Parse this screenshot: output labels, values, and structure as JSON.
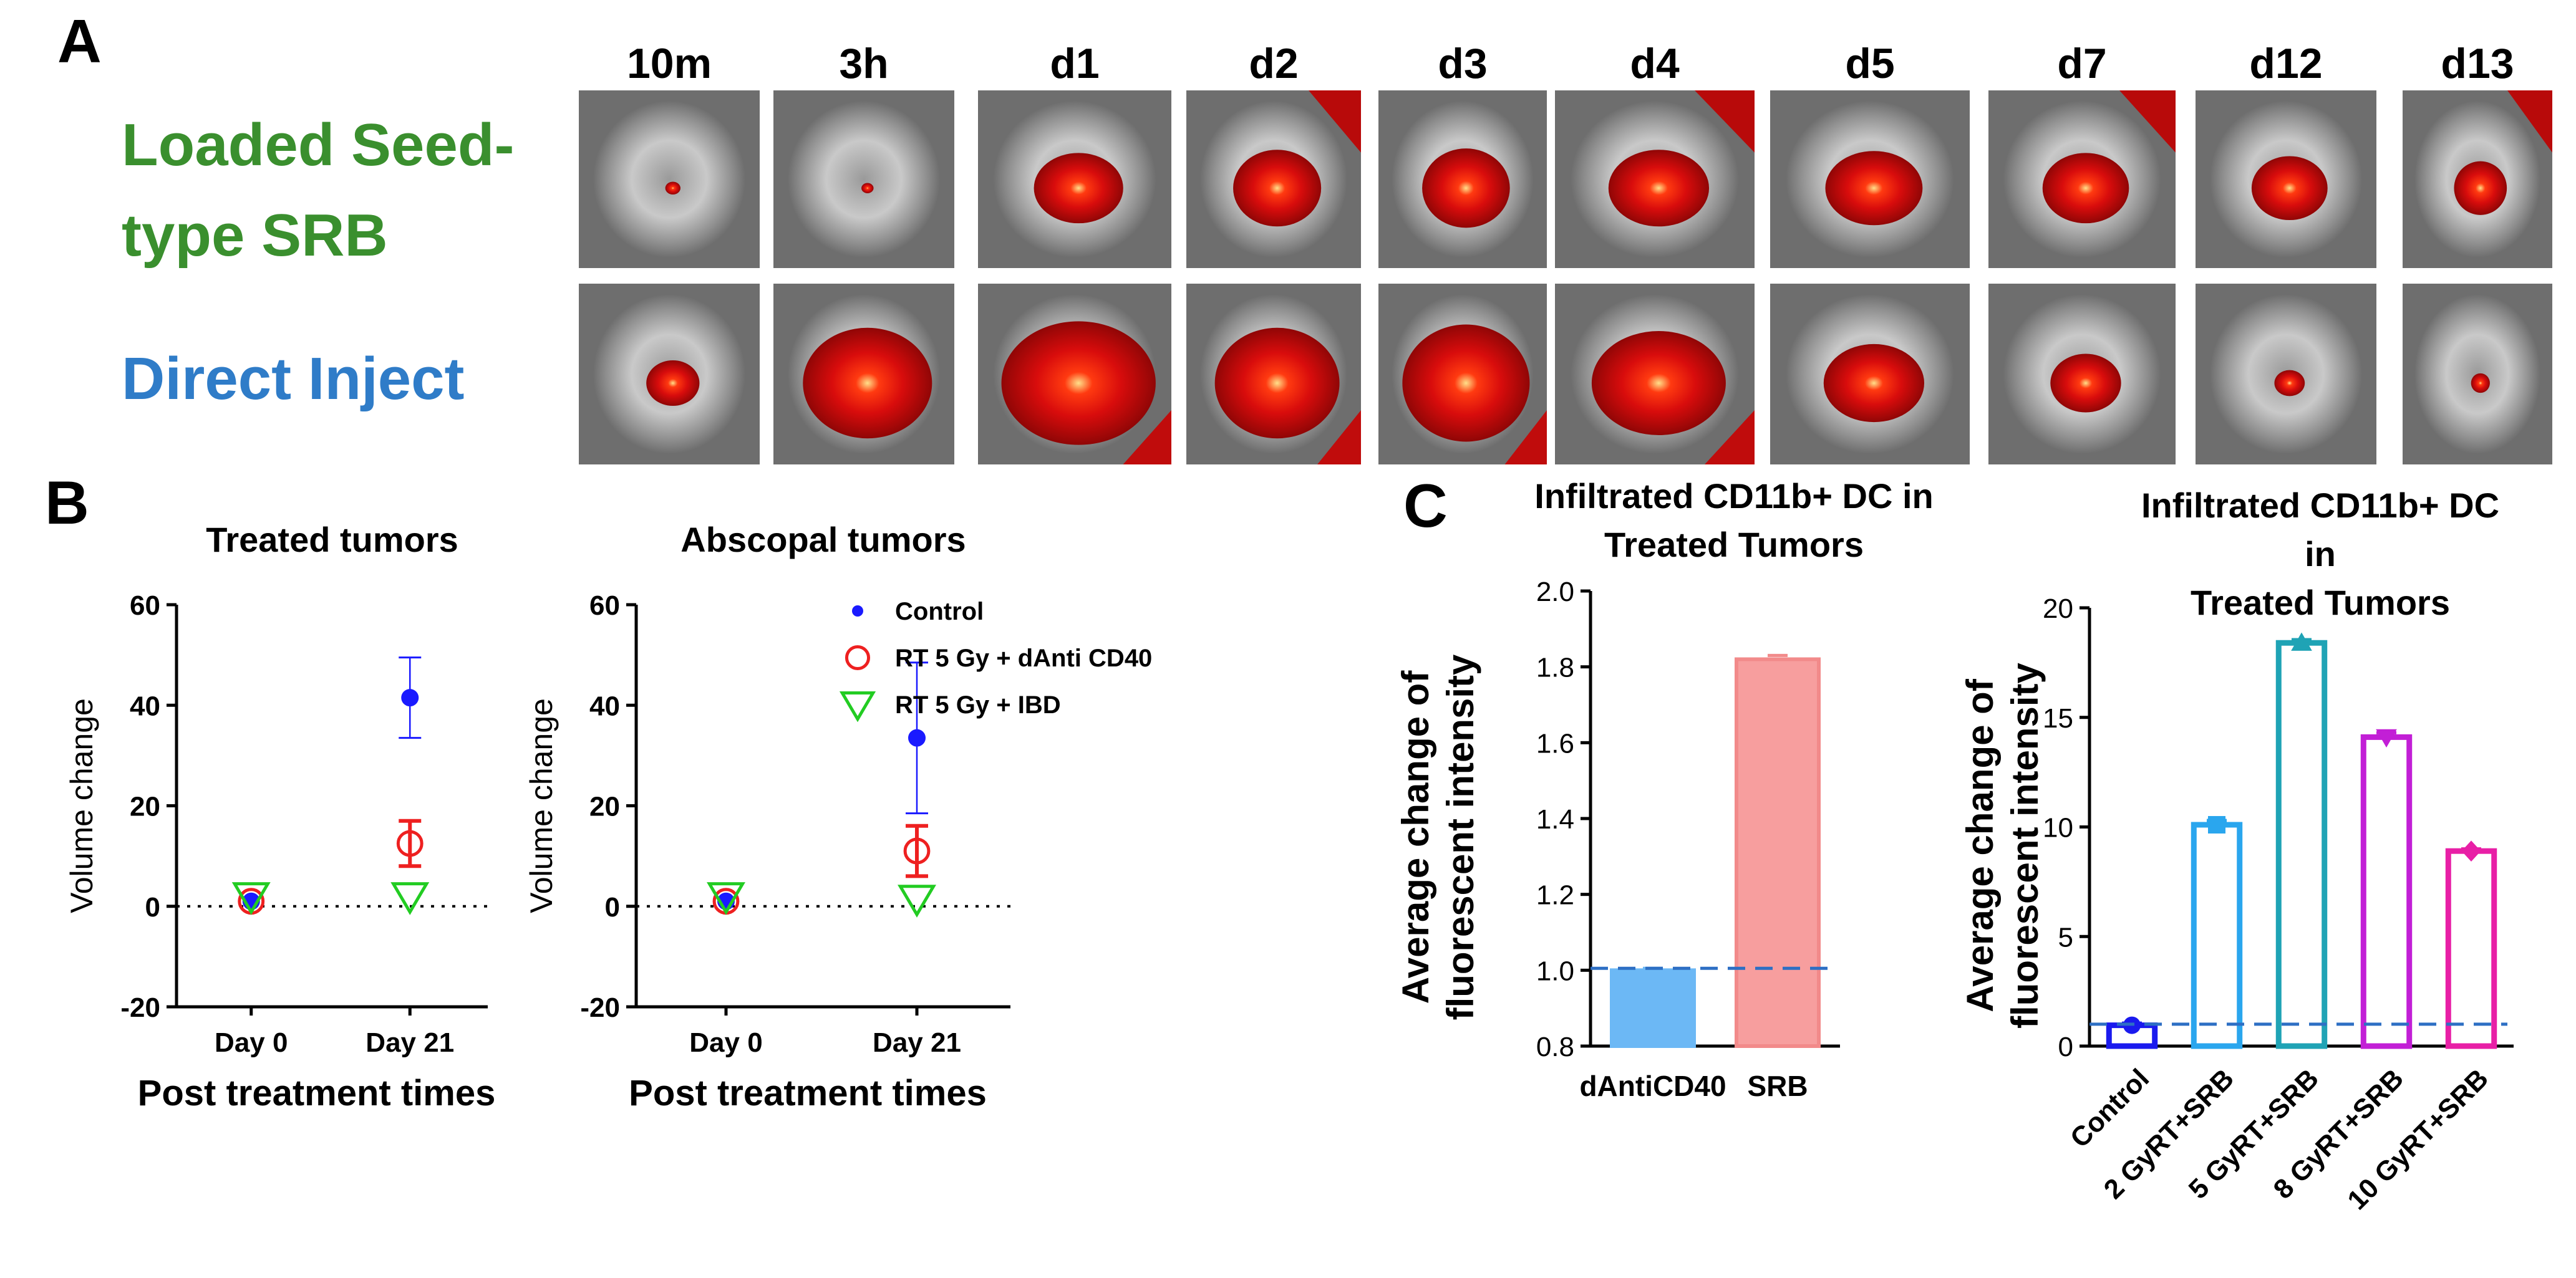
{
  "panel_letters": {
    "a": "A",
    "b": "B",
    "c": "C"
  },
  "panel_a": {
    "timepoints": [
      "10m",
      "3h",
      "d1",
      "d2",
      "d3",
      "d4",
      "d5",
      "d7",
      "d12",
      "d13"
    ],
    "rows": [
      {
        "label_lines": [
          "Loaded Seed-",
          "type SRB"
        ],
        "color": "#3a8f2e",
        "signal": [
          0.1,
          0.08,
          0.55,
          0.6,
          0.62,
          0.6,
          0.58,
          0.55,
          0.5,
          0.42
        ]
      },
      {
        "label_lines": [
          "Direct Inject"
        ],
        "color": "#2f7cc8",
        "signal": [
          0.35,
          0.85,
          0.95,
          0.85,
          0.9,
          0.8,
          0.6,
          0.45,
          0.2,
          0.15
        ]
      }
    ]
  },
  "chart_data": [
    {
      "id": "treated",
      "type": "scatter",
      "title": "Treated tumors",
      "xlabel": "Post treatment times",
      "ylabel": "Volume change",
      "categories": [
        "Day 0",
        "Day 21"
      ],
      "ylim": [
        -20,
        60
      ],
      "yticks": [
        -20,
        0,
        20,
        40,
        60
      ],
      "baseline": 0,
      "series": [
        {
          "name": "Control",
          "marker": "dot",
          "color": "#1a1aff",
          "values": [
            1,
            41.5
          ],
          "err": [
            0.5,
            8
          ]
        },
        {
          "name": "RT 5 Gy + dAnti CD40",
          "marker": "circle",
          "color": "#ee2020",
          "values": [
            1,
            12.5
          ],
          "err": [
            0.5,
            4.5
          ]
        },
        {
          "name": "RT 5 Gy + IBD",
          "marker": "triangle",
          "color": "#22cc22",
          "values": [
            2,
            2
          ],
          "err": [
            0,
            0
          ]
        }
      ]
    },
    {
      "id": "abscopal",
      "type": "scatter",
      "title": "Abscopal tumors",
      "xlabel": "Post treatment times",
      "ylabel": "Volume change",
      "categories": [
        "Day 0",
        "Day 21"
      ],
      "ylim": [
        -20,
        60
      ],
      "yticks": [
        -20,
        0,
        20,
        40,
        60
      ],
      "baseline": 0,
      "legend": "top-right",
      "series": [
        {
          "name": "Control",
          "marker": "dot",
          "color": "#1a1aff",
          "values": [
            1,
            33.5
          ],
          "err": [
            0.5,
            15
          ]
        },
        {
          "name": "RT 5 Gy + dAnti CD40",
          "marker": "circle",
          "color": "#ee2020",
          "values": [
            1,
            11
          ],
          "err": [
            0.5,
            5
          ]
        },
        {
          "name": "RT 5 Gy + IBD",
          "marker": "triangle",
          "color": "#22cc22",
          "values": [
            2,
            1.5
          ],
          "err": [
            0,
            0
          ]
        }
      ]
    },
    {
      "id": "cd40",
      "type": "bar",
      "title_lines": [
        "Infiltrated CD11b+ DC in",
        "Treated Tumors"
      ],
      "ylabel_lines": [
        "Average change of",
        "fluorescent intensity"
      ],
      "categories": [
        "dAntiCD40",
        "SRB"
      ],
      "values": [
        1.0,
        1.82
      ],
      "err": [
        0.005,
        0.01
      ],
      "colors": [
        "#6cb8f5",
        "#f79e9e"
      ],
      "edge_colors": [
        "#6cb8f5",
        "#f28a8a"
      ],
      "ylim": [
        0.8,
        2.0
      ],
      "yticks": [
        0.8,
        1.0,
        1.2,
        1.4,
        1.6,
        1.8,
        2.0
      ],
      "yticks_fmt": 1,
      "baseline": 1.005,
      "filled": true
    },
    {
      "id": "dose",
      "type": "bar",
      "title_lines": [
        "Infiltrated CD11b+ DC",
        "in",
        "Treated Tumors"
      ],
      "ylabel_lines": [
        "Average change of",
        "fluorescent intensity"
      ],
      "categories": [
        "Control",
        "2 GyRT+SRB",
        "5 GyRT+SRB",
        "8 GyRT+SRB",
        "10 GyRT+SRB"
      ],
      "values": [
        0.95,
        10.1,
        18.4,
        14.1,
        8.9
      ],
      "err": [
        0.1,
        0.2,
        0.15,
        0.2,
        0.1
      ],
      "colors": [
        "#1a1aee",
        "#2aa6ee",
        "#1fa3b5",
        "#c21fd6",
        "#e81fa6"
      ],
      "edge_colors": [
        "#1a1aee",
        "#2aa6ee",
        "#1fa3b5",
        "#c21fd6",
        "#e81fa6"
      ],
      "markers": [
        "dot",
        "square",
        "triangle",
        "invtriangle",
        "diamond"
      ],
      "ylim": [
        0,
        20
      ],
      "yticks": [
        0,
        5,
        10,
        15,
        20
      ],
      "yticks_fmt": 0,
      "baseline": 1.0,
      "filled": false,
      "rotate_labels": true
    }
  ]
}
